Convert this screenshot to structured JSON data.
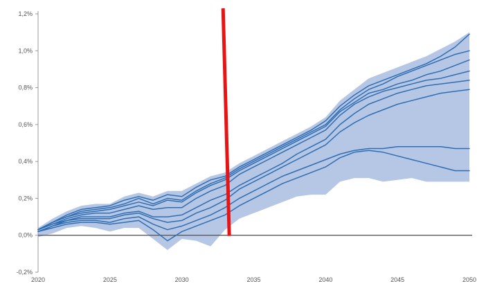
{
  "chart_data": {
    "type": "line",
    "title": "",
    "xlabel": "",
    "ylabel": "",
    "xlim": [
      2020,
      2050
    ],
    "ylim": [
      -0.2,
      1.2
    ],
    "x_ticks": [
      2020,
      2025,
      2030,
      2035,
      2040,
      2045,
      2050
    ],
    "x_tick_labels": [
      "2020",
      "2025",
      "2030",
      "2035",
      "2040",
      "2045",
      "2050"
    ],
    "y_ticks": [
      -0.2,
      0,
      0.2,
      0.4,
      0.6,
      0.8,
      1.0,
      1.2
    ],
    "y_tick_labels": [
      "-0,2%",
      "0,0%",
      "0,2%",
      "0,4%",
      "0,6%",
      "0,8%",
      "1,0%",
      "1,2%"
    ],
    "grid": false,
    "colors": {
      "series": "#2e6db2",
      "band": "#a9bde0",
      "marker": "#e81414",
      "zero": "#5a5a5a"
    },
    "band": {
      "x": [
        2020,
        2021,
        2022,
        2023,
        2024,
        2025,
        2026,
        2027,
        2028,
        2029,
        2030,
        2031,
        2032,
        2033,
        2034,
        2035,
        2036,
        2037,
        2038,
        2039,
        2040,
        2041,
        2042,
        2043,
        2044,
        2045,
        2046,
        2047,
        2048,
        2049,
        2050
      ],
      "upper": [
        0.04,
        0.09,
        0.13,
        0.16,
        0.17,
        0.17,
        0.21,
        0.23,
        0.21,
        0.24,
        0.24,
        0.28,
        0.32,
        0.34,
        0.39,
        0.43,
        0.47,
        0.51,
        0.55,
        0.59,
        0.64,
        0.73,
        0.79,
        0.85,
        0.88,
        0.91,
        0.94,
        0.97,
        1.01,
        1.05,
        1.1
      ],
      "lower": [
        -0.01,
        0.01,
        0.04,
        0.05,
        0.04,
        0.02,
        0.04,
        0.04,
        -0.02,
        -0.08,
        -0.02,
        -0.03,
        -0.06,
        0.03,
        0.09,
        0.12,
        0.15,
        0.18,
        0.21,
        0.22,
        0.22,
        0.29,
        0.31,
        0.31,
        0.29,
        0.3,
        0.31,
        0.29,
        0.29,
        0.29,
        0.29
      ]
    },
    "vertical_marker_x": 2033.3,
    "series": [
      {
        "values": [
          0.03,
          0.07,
          0.11,
          0.14,
          0.15,
          0.16,
          0.19,
          0.21,
          0.19,
          0.22,
          0.21,
          0.26,
          0.3,
          0.32,
          0.37,
          0.41,
          0.45,
          0.49,
          0.53,
          0.57,
          0.62,
          0.7,
          0.76,
          0.81,
          0.84,
          0.87,
          0.9,
          0.93,
          0.97,
          1.02,
          1.09
        ]
      },
      {
        "values": [
          0.03,
          0.07,
          0.1,
          0.13,
          0.14,
          0.15,
          0.17,
          0.2,
          0.17,
          0.2,
          0.19,
          0.24,
          0.28,
          0.31,
          0.36,
          0.4,
          0.44,
          0.48,
          0.52,
          0.56,
          0.6,
          0.68,
          0.74,
          0.79,
          0.82,
          0.86,
          0.89,
          0.92,
          0.95,
          0.98,
          1.0
        ]
      },
      {
        "values": [
          0.03,
          0.07,
          0.1,
          0.12,
          0.13,
          0.14,
          0.16,
          0.18,
          0.16,
          0.19,
          0.18,
          0.23,
          0.27,
          0.3,
          0.35,
          0.39,
          0.43,
          0.47,
          0.51,
          0.55,
          0.59,
          0.67,
          0.72,
          0.77,
          0.79,
          0.82,
          0.84,
          0.87,
          0.89,
          0.92,
          0.95
        ]
      },
      {
        "values": [
          0.03,
          0.06,
          0.09,
          0.11,
          0.12,
          0.12,
          0.14,
          0.16,
          0.14,
          0.15,
          0.15,
          0.2,
          0.24,
          0.27,
          0.33,
          0.37,
          0.41,
          0.45,
          0.49,
          0.53,
          0.57,
          0.65,
          0.71,
          0.75,
          0.78,
          0.8,
          0.82,
          0.84,
          0.85,
          0.87,
          0.89
        ]
      },
      {
        "values": [
          0.03,
          0.06,
          0.08,
          0.1,
          0.1,
          0.1,
          0.12,
          0.13,
          0.1,
          0.1,
          0.11,
          0.15,
          0.19,
          0.22,
          0.27,
          0.31,
          0.35,
          0.39,
          0.44,
          0.48,
          0.52,
          0.6,
          0.66,
          0.71,
          0.74,
          0.77,
          0.79,
          0.81,
          0.82,
          0.83,
          0.84
        ]
      },
      {
        "values": [
          0.02,
          0.05,
          0.08,
          0.09,
          0.09,
          0.09,
          0.11,
          0.12,
          0.09,
          0.07,
          0.08,
          0.12,
          0.15,
          0.19,
          0.25,
          0.29,
          0.33,
          0.37,
          0.41,
          0.45,
          0.49,
          0.56,
          0.61,
          0.65,
          0.68,
          0.71,
          0.73,
          0.75,
          0.77,
          0.78,
          0.79
        ]
      },
      {
        "values": [
          0.02,
          0.05,
          0.07,
          0.08,
          0.08,
          0.07,
          0.09,
          0.1,
          0.06,
          0.03,
          0.05,
          0.08,
          0.11,
          0.15,
          0.2,
          0.24,
          0.28,
          0.32,
          0.35,
          0.38,
          0.41,
          0.44,
          0.46,
          0.47,
          0.47,
          0.48,
          0.48,
          0.48,
          0.48,
          0.47,
          0.47
        ]
      },
      {
        "values": [
          0.02,
          0.04,
          0.06,
          0.07,
          0.07,
          0.06,
          0.07,
          0.08,
          0.03,
          -0.03,
          0.02,
          0.05,
          0.08,
          0.11,
          0.16,
          0.2,
          0.24,
          0.28,
          0.31,
          0.34,
          0.37,
          0.42,
          0.45,
          0.46,
          0.45,
          0.43,
          0.41,
          0.39,
          0.37,
          0.35,
          0.35
        ]
      }
    ]
  }
}
